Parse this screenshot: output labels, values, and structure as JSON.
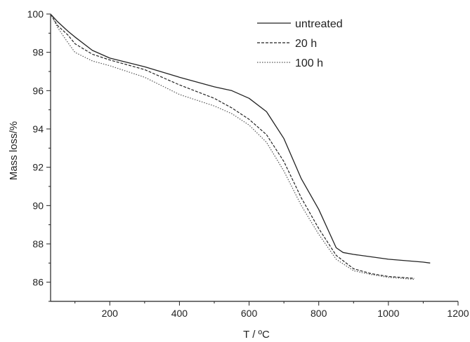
{
  "chart_data": {
    "type": "line",
    "xlabel": "T / ºC",
    "ylabel": "Mass loss/%",
    "xlim": [
      30,
      1200
    ],
    "ylim": [
      85,
      100
    ],
    "x_ticks": [
      200,
      400,
      600,
      800,
      1000,
      1200
    ],
    "y_ticks": [
      86,
      88,
      90,
      92,
      94,
      96,
      98,
      100
    ],
    "grid": false,
    "legend_position": "top-right",
    "series": [
      {
        "name": "untreated",
        "style": "solid",
        "color": "#222222",
        "points": [
          [
            30,
            100
          ],
          [
            50,
            99.6
          ],
          [
            80,
            99.1
          ],
          [
            100,
            98.8
          ],
          [
            150,
            98.1
          ],
          [
            200,
            97.7
          ],
          [
            300,
            97.25
          ],
          [
            400,
            96.7
          ],
          [
            500,
            96.2
          ],
          [
            550,
            96.0
          ],
          [
            600,
            95.6
          ],
          [
            650,
            94.9
          ],
          [
            700,
            93.5
          ],
          [
            750,
            91.4
          ],
          [
            800,
            89.8
          ],
          [
            830,
            88.6
          ],
          [
            850,
            87.8
          ],
          [
            870,
            87.55
          ],
          [
            900,
            87.45
          ],
          [
            1000,
            87.2
          ],
          [
            1100,
            87.05
          ],
          [
            1120,
            87.0
          ]
        ]
      },
      {
        "name": "20 h",
        "style": "dashed",
        "color": "#222222",
        "points": [
          [
            30,
            100
          ],
          [
            50,
            99.4
          ],
          [
            80,
            98.9
          ],
          [
            100,
            98.45
          ],
          [
            150,
            97.9
          ],
          [
            200,
            97.6
          ],
          [
            300,
            97.1
          ],
          [
            400,
            96.3
          ],
          [
            500,
            95.6
          ],
          [
            550,
            95.1
          ],
          [
            600,
            94.5
          ],
          [
            650,
            93.7
          ],
          [
            700,
            92.3
          ],
          [
            750,
            90.4
          ],
          [
            800,
            88.8
          ],
          [
            850,
            87.4
          ],
          [
            900,
            86.7
          ],
          [
            950,
            86.45
          ],
          [
            1000,
            86.3
          ],
          [
            1075,
            86.2
          ]
        ]
      },
      {
        "name": "100 h",
        "style": "dotted",
        "color": "#555555",
        "points": [
          [
            30,
            100
          ],
          [
            50,
            99.3
          ],
          [
            80,
            98.5
          ],
          [
            100,
            98.0
          ],
          [
            150,
            97.55
          ],
          [
            200,
            97.3
          ],
          [
            300,
            96.7
          ],
          [
            400,
            95.8
          ],
          [
            500,
            95.2
          ],
          [
            550,
            94.8
          ],
          [
            600,
            94.2
          ],
          [
            650,
            93.3
          ],
          [
            700,
            91.8
          ],
          [
            750,
            90.0
          ],
          [
            800,
            88.5
          ],
          [
            850,
            87.2
          ],
          [
            900,
            86.6
          ],
          [
            950,
            86.4
          ],
          [
            1000,
            86.25
          ],
          [
            1075,
            86.15
          ]
        ]
      }
    ]
  }
}
